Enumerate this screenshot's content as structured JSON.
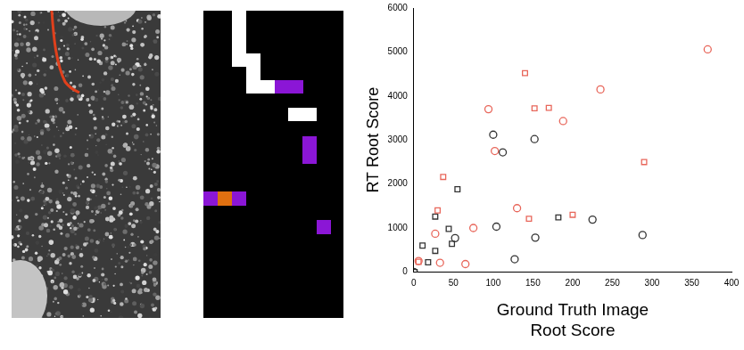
{
  "chart_data": {
    "type": "scatter",
    "x_label": [
      "Ground Truth Image",
      "Root Score"
    ],
    "y_label": "RT Root Score",
    "xlim": [
      0,
      400
    ],
    "xticks": [
      0,
      50,
      100,
      150,
      200,
      250,
      300,
      350,
      400
    ],
    "ylim": [
      0,
      6000
    ],
    "yticks": [
      0,
      1000,
      2000,
      3000,
      4000,
      5000,
      6000
    ],
    "grid": false,
    "series": [
      {
        "color": "#e8665a",
        "marker": "circle",
        "x": [
          6,
          27,
          33,
          65,
          75,
          94,
          102,
          130,
          188,
          235,
          370
        ],
        "values": [
          250,
          870,
          210,
          180,
          1000,
          3700,
          2750,
          1450,
          3430,
          4150,
          5060
        ]
      },
      {
        "color": "#e8665a",
        "marker": "square",
        "x": [
          6,
          30,
          37,
          140,
          145,
          152,
          170,
          200,
          290
        ],
        "values": [
          230,
          1400,
          2160,
          4520,
          1210,
          3720,
          3730,
          1300,
          2500
        ]
      },
      {
        "color": "#333333",
        "marker": "circle",
        "x": [
          0,
          52,
          100,
          104,
          112,
          127,
          152,
          153,
          225,
          288
        ],
        "values": [
          0,
          770,
          3120,
          1030,
          2720,
          290,
          3020,
          780,
          1190,
          840
        ]
      },
      {
        "color": "#333333",
        "marker": "square",
        "x": [
          1,
          11,
          18,
          27,
          27,
          44,
          48,
          55,
          182
        ],
        "values": [
          0,
          600,
          220,
          480,
          1260,
          980,
          640,
          1880,
          1240
        ]
      }
    ]
  }
}
